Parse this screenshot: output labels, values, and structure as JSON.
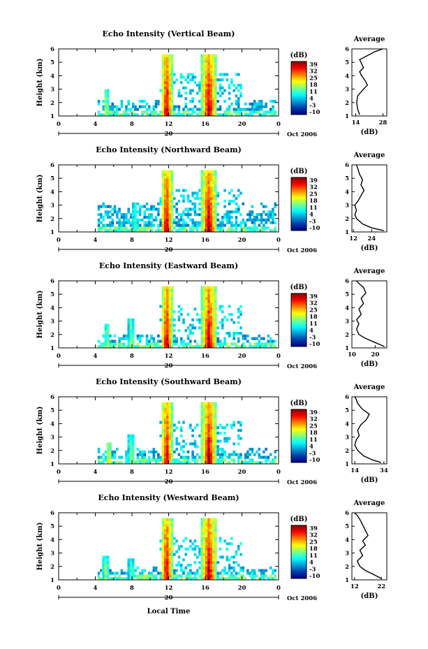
{
  "figure": {
    "xlabel": "Local Time",
    "date_label": "Oct 2006",
    "date_day": "20",
    "colorbar_unit": "(dB)",
    "colorbar_ticks": [
      "39",
      "32",
      "25",
      "18",
      "11",
      "4",
      "-3",
      "-10"
    ],
    "avg_title": "Average",
    "avg_xlabel": "(dB)"
  },
  "chart_data": [
    {
      "type": "heatmap",
      "title": "Echo Intensity (Vertical Beam)",
      "ylabel": "Height (km)",
      "xlim": [
        0,
        24
      ],
      "ylim": [
        1,
        6
      ],
      "xticks": [
        "0",
        "4",
        "8",
        "12",
        "16",
        "20",
        "0"
      ],
      "yticks": [
        "1",
        "2",
        "3",
        "4",
        "5",
        "6"
      ],
      "zlim": [
        -10,
        39
      ],
      "events": [
        {
          "start": 4.9,
          "end": 5.5,
          "top": 2.9,
          "peak": 20
        },
        {
          "start": 11.2,
          "end": 12.4,
          "top": 5.5,
          "peak": 39
        },
        {
          "start": 15.6,
          "end": 17.2,
          "top": 5.5,
          "peak": 39
        }
      ],
      "background_top": 2.2,
      "average": {
        "x": [
          16,
          15,
          14.5,
          15,
          18,
          20,
          19,
          17,
          16,
          18,
          17,
          16,
          20,
          24,
          28
        ],
        "y": [
          1.1,
          1.5,
          2,
          2.5,
          3,
          3.3,
          3.6,
          4,
          4.3,
          4.6,
          4.9,
          5.2,
          5.5,
          5.8,
          6
        ],
        "xticks": [
          "14",
          "28"
        ],
        "xlim": [
          12,
          30
        ]
      }
    },
    {
      "type": "heatmap",
      "title": "Echo Intensity (Northward Beam)",
      "ylabel": "Height (km)",
      "xlim": [
        0,
        24
      ],
      "ylim": [
        1,
        6
      ],
      "xticks": [
        "0",
        "4",
        "8",
        "12",
        "16",
        "20",
        "0"
      ],
      "yticks": [
        "1",
        "2",
        "3",
        "4",
        "5",
        "6"
      ],
      "zlim": [
        -10,
        39
      ],
      "events": [
        {
          "start": 8.0,
          "end": 8.6,
          "top": 3.2,
          "peak": 15
        },
        {
          "start": 11.2,
          "end": 12.4,
          "top": 5.5,
          "peak": 39
        },
        {
          "start": 15.6,
          "end": 17.2,
          "top": 5.5,
          "peak": 39
        }
      ],
      "background_top": 3.2,
      "average": {
        "x": [
          32,
          24,
          18,
          14,
          13,
          14,
          13,
          15,
          17,
          19,
          17,
          18,
          16,
          15,
          14
        ],
        "y": [
          1.1,
          1.3,
          1.6,
          2,
          2.3,
          2.6,
          3,
          3.3,
          3.7,
          4.1,
          4.5,
          4.9,
          5.3,
          5.7,
          6
        ],
        "xticks": [
          "12",
          "24"
        ],
        "xlim": [
          11,
          34
        ]
      }
    },
    {
      "type": "heatmap",
      "title": "Echo Intensity (Eastward Beam)",
      "ylabel": "Height (km)",
      "xlim": [
        0,
        24
      ],
      "ylim": [
        1,
        6
      ],
      "xticks": [
        "0",
        "4",
        "8",
        "12",
        "16",
        "20",
        "0"
      ],
      "yticks": [
        "1",
        "2",
        "3",
        "4",
        "5",
        "6"
      ],
      "zlim": [
        -10,
        39
      ],
      "events": [
        {
          "start": 5.0,
          "end": 5.6,
          "top": 2.8,
          "peak": 18
        },
        {
          "start": 7.6,
          "end": 8.3,
          "top": 3.3,
          "peak": 18
        },
        {
          "start": 11.2,
          "end": 12.4,
          "top": 5.5,
          "peak": 39
        },
        {
          "start": 15.6,
          "end": 17.2,
          "top": 5.5,
          "peak": 39
        }
      ],
      "background_top": 2.0,
      "average": {
        "x": [
          24,
          20,
          16,
          13,
          12,
          13,
          12,
          14,
          13,
          15,
          14,
          16,
          15,
          13,
          12
        ],
        "y": [
          1.1,
          1.4,
          1.7,
          2,
          2.4,
          2.8,
          3.1,
          3.5,
          3.9,
          4.3,
          4.7,
          5.1,
          5.5,
          5.8,
          6
        ],
        "xticks": [
          "10",
          "20"
        ],
        "xlim": [
          10,
          25
        ]
      }
    },
    {
      "type": "heatmap",
      "title": "Echo Intensity (Southward Beam)",
      "ylabel": "Height (km)",
      "xlim": [
        0,
        24
      ],
      "ylim": [
        1,
        6
      ],
      "xticks": [
        "0",
        "4",
        "8",
        "12",
        "16",
        "20",
        "0"
      ],
      "yticks": [
        "1",
        "2",
        "3",
        "4",
        "5",
        "6"
      ],
      "zlim": [
        -10,
        39
      ],
      "events": [
        {
          "start": 5.2,
          "end": 5.8,
          "top": 2.6,
          "peak": 25
        },
        {
          "start": 7.6,
          "end": 8.3,
          "top": 3.3,
          "peak": 18
        },
        {
          "start": 11.2,
          "end": 12.4,
          "top": 5.5,
          "peak": 39
        },
        {
          "start": 15.6,
          "end": 17.2,
          "top": 5.5,
          "peak": 39
        }
      ],
      "background_top": 2.2,
      "average": {
        "x": [
          32,
          26,
          20,
          16,
          14,
          15,
          17,
          16,
          18,
          22,
          24,
          19,
          16,
          15,
          14
        ],
        "y": [
          1.1,
          1.3,
          1.6,
          2,
          2.4,
          2.8,
          3.1,
          3.5,
          3.9,
          4.3,
          4.7,
          5.1,
          5.5,
          5.8,
          6
        ],
        "xticks": [
          "14",
          "34"
        ],
        "xlim": [
          12,
          36
        ]
      }
    },
    {
      "type": "heatmap",
      "title": "Echo Intensity (Westward Beam)",
      "ylabel": "Height (km)",
      "xlim": [
        0,
        24
      ],
      "ylim": [
        1,
        6
      ],
      "xticks": [
        "0",
        "4",
        "8",
        "12",
        "16",
        "20",
        "0"
      ],
      "yticks": [
        "1",
        "2",
        "3",
        "4",
        "5",
        "6"
      ],
      "zlim": [
        -10,
        39
      ],
      "events": [
        {
          "start": 4.8,
          "end": 5.5,
          "top": 2.8,
          "peak": 18
        },
        {
          "start": 7.6,
          "end": 8.3,
          "top": 2.6,
          "peak": 15
        },
        {
          "start": 11.2,
          "end": 12.4,
          "top": 5.5,
          "peak": 39
        },
        {
          "start": 15.6,
          "end": 17.2,
          "top": 5.5,
          "peak": 39
        }
      ],
      "background_top": 2.0,
      "average": {
        "x": [
          22,
          19,
          16,
          14,
          13,
          15,
          14,
          16,
          15,
          17,
          16,
          15,
          14,
          13,
          12
        ],
        "y": [
          1.1,
          1.4,
          1.7,
          2,
          2.4,
          2.8,
          3.2,
          3.6,
          3.9,
          4.3,
          4.7,
          5.1,
          5.5,
          5.8,
          6
        ],
        "xticks": [
          "12",
          "22"
        ],
        "xlim": [
          11,
          24
        ]
      }
    }
  ]
}
